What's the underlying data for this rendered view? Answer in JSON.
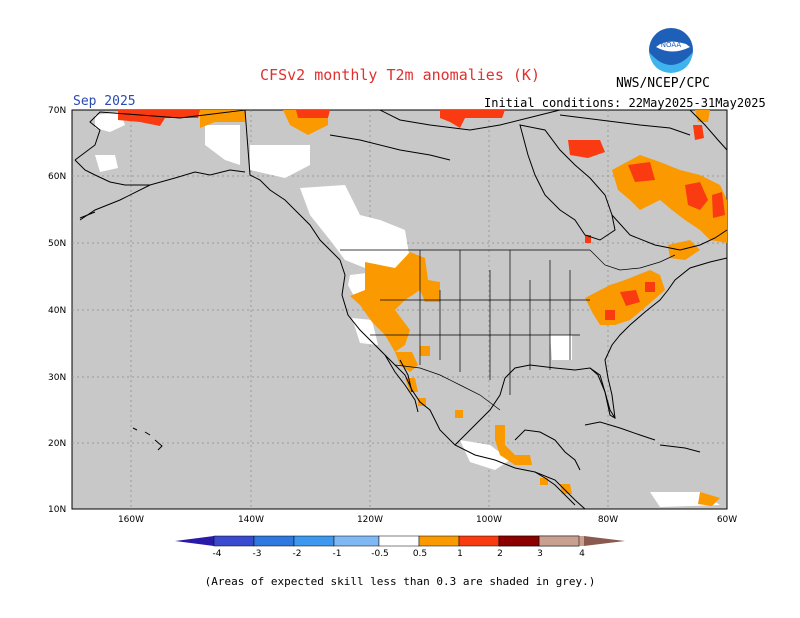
{
  "title": "CFSv2 monthly T2m anomalies (K)",
  "agency": "NWS/NCEP/CPC",
  "logo_text": "NOAA",
  "valid_month": "Sep 2025",
  "initial_conditions": "Initial conditions: 22May2025-31May2025",
  "footnote": "(Areas of expected skill less than 0.3 are shaded in grey.)",
  "map": {
    "lat_labels": [
      "70N",
      "60N",
      "50N",
      "40N",
      "30N",
      "20N",
      "10N"
    ],
    "lon_labels": [
      "160W",
      "140W",
      "120W",
      "100W",
      "80W",
      "60W"
    ],
    "lat_range": [
      10,
      70
    ],
    "lon_range": [
      -170,
      -60
    ],
    "land_color": "#c8c8c8",
    "ocean_color": "#c8c8c8"
  },
  "colorbar": {
    "labels": [
      "-4",
      "-3",
      "-2",
      "-1",
      "-0.5",
      "0.5",
      "1",
      "2",
      "3",
      "4"
    ],
    "colors": [
      "#2a1aa8",
      "#3a4ad0",
      "#2f78e0",
      "#3f98f0",
      "#7fb8f4",
      "#ffffff",
      "#fa9a00",
      "#fa3a10",
      "#c40808",
      "#8c0000",
      "#c8a090",
      "#8a5a50"
    ]
  }
}
